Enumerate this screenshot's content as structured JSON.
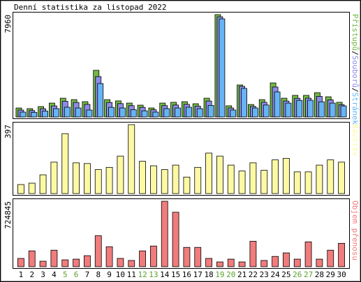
{
  "chart_data": [
    {
      "type": "bar",
      "title": "Denní statistika za listopad 2022",
      "categories": [
        "1",
        "2",
        "3",
        "4",
        "5",
        "6",
        "7",
        "8",
        "9",
        "10",
        "11",
        "12",
        "13",
        "14",
        "15",
        "16",
        "17",
        "18",
        "19",
        "20",
        "21",
        "22",
        "23",
        "24",
        "25",
        "26",
        "27",
        "28",
        "29",
        "30"
      ],
      "category_colors": [
        "#000000",
        "#000000",
        "#000000",
        "#000000",
        "#5aa02c",
        "#5aa02c",
        "#000000",
        "#000000",
        "#000000",
        "#000000",
        "#000000",
        "#5aa02c",
        "#5aa02c",
        "#000000",
        "#000000",
        "#000000",
        "#000000",
        "#000000",
        "#5aa02c",
        "#5aa02c",
        "#000000",
        "#000000",
        "#000000",
        "#000000",
        "#000000",
        "#5aa02c",
        "#5aa02c",
        "#000000",
        "#000000",
        "#000000"
      ],
      "legend_separator": "/",
      "series": [
        {
          "name": "Přístupů",
          "color": "#72b843",
          "values": [
            700,
            650,
            810,
            1080,
            1460,
            1350,
            1190,
            3630,
            1350,
            1250,
            1080,
            920,
            700,
            1080,
            1140,
            1190,
            1030,
            1460,
            7960,
            870,
            2490,
            970,
            1350,
            2650,
            1460,
            1680,
            1680,
            1890,
            1570,
            1140
          ]
        },
        {
          "name": "Souborů",
          "color": "#8c8ce8",
          "values": [
            540,
            500,
            640,
            860,
            1220,
            1130,
            980,
            3140,
            1130,
            1040,
            880,
            750,
            560,
            880,
            930,
            980,
            840,
            1240,
            7790,
            700,
            2380,
            820,
            1140,
            2330,
            1240,
            1450,
            1460,
            1600,
            1330,
            950
          ]
        },
        {
          "name": "Stránek",
          "color": "#66b4f5",
          "values": [
            380,
            360,
            460,
            650,
            760,
            700,
            540,
            2600,
            750,
            700,
            560,
            480,
            380,
            650,
            700,
            760,
            650,
            900,
            7630,
            540,
            2220,
            700,
            930,
            1950,
            1080,
            1290,
            1300,
            1180,
            1080,
            860
          ]
        }
      ],
      "ylim": [
        0,
        7960
      ],
      "yticks": [
        7960
      ]
    },
    {
      "type": "bar",
      "categories": [
        "1",
        "2",
        "3",
        "4",
        "5",
        "6",
        "7",
        "8",
        "9",
        "10",
        "11",
        "12",
        "13",
        "14",
        "15",
        "16",
        "17",
        "18",
        "19",
        "20",
        "21",
        "22",
        "23",
        "24",
        "25",
        "26",
        "27",
        "28",
        "29",
        "30"
      ],
      "series": [
        {
          "name": "Návštěv",
          "color": "#fdf9a3",
          "values": [
            52,
            60,
            108,
            181,
            345,
            177,
            173,
            138,
            151,
            216,
            397,
            186,
            160,
            138,
            164,
            95,
            151,
            233,
            216,
            164,
            130,
            177,
            134,
            194,
            203,
            125,
            125,
            164,
            194,
            181
          ]
        }
      ],
      "ylim": [
        0,
        397
      ],
      "yticks": [
        397
      ]
    },
    {
      "type": "bar",
      "categories": [
        "1",
        "2",
        "3",
        "4",
        "5",
        "6",
        "7",
        "8",
        "9",
        "10",
        "11",
        "12",
        "13",
        "14",
        "15",
        "16",
        "17",
        "18",
        "19",
        "20",
        "21",
        "22",
        "23",
        "24",
        "25",
        "26",
        "27",
        "28",
        "29",
        "30"
      ],
      "series": [
        {
          "name": "Objem přenosu",
          "color": "#f07c7c",
          "values": [
            91560,
            175000,
            61000,
            183000,
            76000,
            84000,
            122000,
            343000,
            221000,
            92000,
            69000,
            175000,
            229000,
            724845,
            603000,
            214000,
            214000,
            92000,
            53000,
            84000,
            53000,
            282000,
            69000,
            114000,
            153000,
            84000,
            275000,
            84000,
            183000,
            259000
          ]
        }
      ],
      "ylim": [
        0,
        724845
      ],
      "yticks": [
        724845
      ]
    }
  ]
}
